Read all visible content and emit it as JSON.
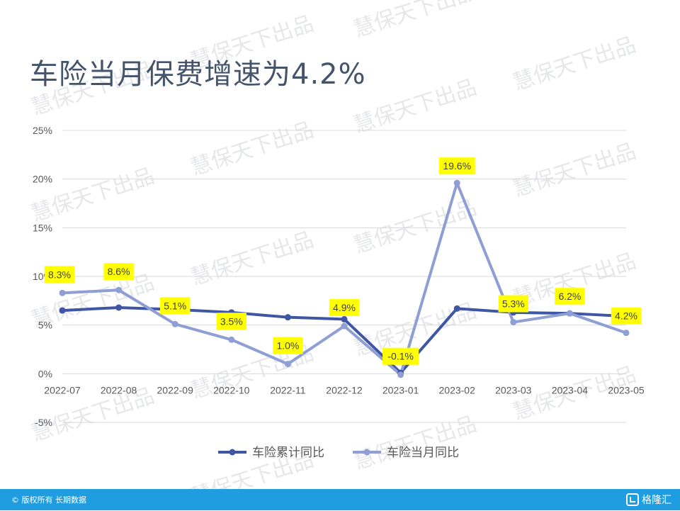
{
  "page": {
    "title": "车险当月保费增速为4.2%",
    "watermark": "慧保天下出品",
    "footer_text": "© 版权所有 长期数据",
    "footer_logo": "格隆汇"
  },
  "colors": {
    "cumulative": "#3f56a4",
    "monthly": "#8f9fd6",
    "label_bg": "#ffff00",
    "grid": "#d9d9d9",
    "axis_text": "#595959",
    "footer": "#1f9de0"
  },
  "chart_data": {
    "type": "line",
    "title": "车险当月保费增速为4.2%",
    "xlabel": "",
    "ylabel": "",
    "ylim": [
      -0.05,
      0.25
    ],
    "y_ticks": [
      "-5%",
      "0%",
      "5%",
      "10%",
      "15%",
      "20%",
      "25%"
    ],
    "y_tick_values": [
      -0.05,
      0,
      0.05,
      0.1,
      0.15,
      0.2,
      0.25
    ],
    "grid": true,
    "legend_position": "bottom",
    "categories": [
      "2022-07",
      "2022-08",
      "2022-09",
      "2022-10",
      "2022-11",
      "2022-12",
      "2023-01",
      "2023-02",
      "2023-03",
      "2023-04",
      "2023-05"
    ],
    "series": [
      {
        "name": "车险累计同比",
        "values": [
          0.065,
          0.068,
          0.066,
          0.063,
          0.058,
          0.056,
          0.001,
          0.067,
          0.063,
          0.062,
          0.059
        ]
      },
      {
        "name": "车险当月同比",
        "values": [
          0.083,
          0.086,
          0.051,
          0.035,
          0.01,
          0.049,
          -0.001,
          0.196,
          0.053,
          0.062,
          0.042
        ],
        "data_labels": [
          "8.3%",
          "8.6%",
          "5.1%",
          "3.5%",
          "1.0%",
          "4.9%",
          "-0.1%",
          "19.6%",
          "5.3%",
          "6.2%",
          "4.2%"
        ]
      }
    ]
  }
}
